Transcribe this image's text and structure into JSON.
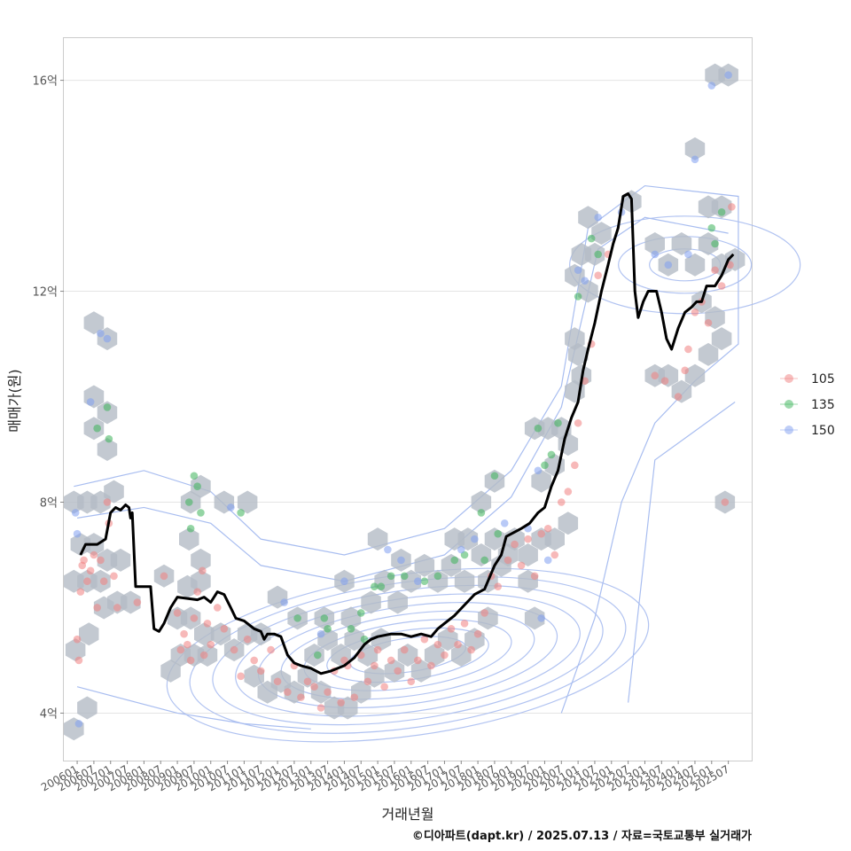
{
  "chart_data": {
    "type": "scatter",
    "xlabel": "거래년월",
    "ylabel": "매매가(원)",
    "caption": "©디아파트(dapt.kr) / 2025.07.13 / 자료=국토교통부 실거래가",
    "x_range": [
      2005.6,
      2026.2
    ],
    "y_range": [
      3.1,
      16.8
    ],
    "y_ticks": [
      {
        "value": 4,
        "label": "4억"
      },
      {
        "value": 8,
        "label": "8억"
      },
      {
        "value": 12,
        "label": "12억"
      },
      {
        "value": 16,
        "label": "16억"
      }
    ],
    "x_tick_labels": [
      "200601",
      "200607",
      "200701",
      "200707",
      "200801",
      "200807",
      "200901",
      "200907",
      "201001",
      "201007",
      "201101",
      "201107",
      "201201",
      "201207",
      "201301",
      "201307",
      "201401",
      "201407",
      "201501",
      "201507",
      "201601",
      "201607",
      "201701",
      "201707",
      "201801",
      "201807",
      "201901",
      "201907",
      "202001",
      "202007",
      "202101",
      "202107",
      "202201",
      "202207",
      "202301",
      "202307",
      "202401",
      "202407",
      "202501",
      "202507"
    ],
    "legend": {
      "position": "right",
      "entries": [
        {
          "label": "105",
          "color": "#f08080"
        },
        {
          "label": "135",
          "color": "#3cb35a"
        },
        {
          "label": "150",
          "color": "#7f9ef0"
        }
      ]
    },
    "trend_line": [
      [
        2006.1,
        7.0
      ],
      [
        2006.25,
        7.2
      ],
      [
        2006.6,
        7.2
      ],
      [
        2006.85,
        7.3
      ],
      [
        2007.0,
        7.8
      ],
      [
        2007.15,
        7.9
      ],
      [
        2007.3,
        7.85
      ],
      [
        2007.45,
        7.95
      ],
      [
        2007.55,
        7.9
      ],
      [
        2007.6,
        7.7
      ],
      [
        2007.65,
        7.8
      ],
      [
        2007.75,
        6.4
      ],
      [
        2007.9,
        6.4
      ],
      [
        2008.2,
        6.4
      ],
      [
        2008.3,
        5.6
      ],
      [
        2008.45,
        5.55
      ],
      [
        2008.6,
        5.7
      ],
      [
        2008.8,
        6.0
      ],
      [
        2009.0,
        6.2
      ],
      [
        2009.6,
        6.15
      ],
      [
        2009.8,
        6.2
      ],
      [
        2010.0,
        6.1
      ],
      [
        2010.2,
        6.3
      ],
      [
        2010.4,
        6.25
      ],
      [
        2010.6,
        6.0
      ],
      [
        2010.75,
        5.8
      ],
      [
        2011.0,
        5.75
      ],
      [
        2011.3,
        5.6
      ],
      [
        2011.5,
        5.55
      ],
      [
        2011.6,
        5.4
      ],
      [
        2011.7,
        5.5
      ],
      [
        2011.9,
        5.5
      ],
      [
        2012.1,
        5.45
      ],
      [
        2012.3,
        5.1
      ],
      [
        2012.5,
        4.95
      ],
      [
        2012.7,
        4.9
      ],
      [
        2013.0,
        4.85
      ],
      [
        2013.3,
        4.75
      ],
      [
        2013.6,
        4.8
      ],
      [
        2013.8,
        4.85
      ],
      [
        2014.0,
        4.9
      ],
      [
        2014.3,
        5.05
      ],
      [
        2014.6,
        5.3
      ],
      [
        2014.8,
        5.4
      ],
      [
        2015.0,
        5.45
      ],
      [
        2015.4,
        5.5
      ],
      [
        2015.7,
        5.5
      ],
      [
        2016.0,
        5.45
      ],
      [
        2016.3,
        5.5
      ],
      [
        2016.6,
        5.45
      ],
      [
        2016.8,
        5.6
      ],
      [
        2017.0,
        5.7
      ],
      [
        2017.3,
        5.85
      ],
      [
        2017.6,
        6.05
      ],
      [
        2017.9,
        6.25
      ],
      [
        2018.2,
        6.35
      ],
      [
        2018.5,
        6.8
      ],
      [
        2018.7,
        7.0
      ],
      [
        2018.85,
        7.35
      ],
      [
        2019.0,
        7.4
      ],
      [
        2019.3,
        7.5
      ],
      [
        2019.55,
        7.6
      ],
      [
        2019.8,
        7.8
      ],
      [
        2020.0,
        7.9
      ],
      [
        2020.2,
        8.3
      ],
      [
        2020.4,
        8.6
      ],
      [
        2020.6,
        9.2
      ],
      [
        2020.8,
        9.6
      ],
      [
        2021.0,
        9.9
      ],
      [
        2021.15,
        10.5
      ],
      [
        2021.3,
        10.9
      ],
      [
        2021.5,
        11.4
      ],
      [
        2021.7,
        12.0
      ],
      [
        2021.9,
        12.5
      ],
      [
        2022.05,
        12.9
      ],
      [
        2022.2,
        13.2
      ],
      [
        2022.35,
        13.8
      ],
      [
        2022.5,
        13.85
      ],
      [
        2022.6,
        13.75
      ],
      [
        2022.7,
        12.0
      ],
      [
        2022.8,
        11.5
      ],
      [
        2022.95,
        11.8
      ],
      [
        2023.1,
        12.0
      ],
      [
        2023.35,
        12.0
      ],
      [
        2023.5,
        11.6
      ],
      [
        2023.65,
        11.1
      ],
      [
        2023.8,
        10.9
      ],
      [
        2024.0,
        11.3
      ],
      [
        2024.2,
        11.6
      ],
      [
        2024.4,
        11.7
      ],
      [
        2024.55,
        11.8
      ],
      [
        2024.7,
        11.8
      ],
      [
        2024.85,
        12.1
      ],
      [
        2025.1,
        12.1
      ],
      [
        2025.3,
        12.3
      ],
      [
        2025.5,
        12.6
      ],
      [
        2025.65,
        12.7
      ]
    ],
    "points_105": [
      [
        2006.0,
        5.4
      ],
      [
        2006.05,
        5.0
      ],
      [
        2006.1,
        6.3
      ],
      [
        2006.15,
        6.8
      ],
      [
        2006.2,
        6.9
      ],
      [
        2006.3,
        6.5
      ],
      [
        2006.4,
        6.7
      ],
      [
        2006.5,
        7.0
      ],
      [
        2006.6,
        6.0
      ],
      [
        2006.7,
        6.9
      ],
      [
        2006.8,
        6.5
      ],
      [
        2006.9,
        8.0
      ],
      [
        2006.95,
        7.6
      ],
      [
        2007.1,
        6.6
      ],
      [
        2007.2,
        6.0
      ],
      [
        2007.8,
        6.1
      ],
      [
        2008.6,
        6.6
      ],
      [
        2009.0,
        5.9
      ],
      [
        2009.1,
        5.2
      ],
      [
        2009.2,
        5.5
      ],
      [
        2009.3,
        5.3
      ],
      [
        2009.4,
        5.0
      ],
      [
        2009.5,
        5.8
      ],
      [
        2009.6,
        6.3
      ],
      [
        2009.75,
        6.7
      ],
      [
        2009.8,
        5.1
      ],
      [
        2009.9,
        5.7
      ],
      [
        2010.0,
        5.3
      ],
      [
        2010.2,
        6.0
      ],
      [
        2010.4,
        5.6
      ],
      [
        2010.7,
        5.2
      ],
      [
        2010.9,
        4.7
      ],
      [
        2011.1,
        5.4
      ],
      [
        2011.3,
        5.0
      ],
      [
        2011.5,
        4.8
      ],
      [
        2011.8,
        5.2
      ],
      [
        2012.0,
        4.6
      ],
      [
        2012.3,
        4.4
      ],
      [
        2012.5,
        4.9
      ],
      [
        2012.7,
        4.3
      ],
      [
        2012.9,
        4.6
      ],
      [
        2013.1,
        4.5
      ],
      [
        2013.3,
        4.1
      ],
      [
        2013.5,
        4.4
      ],
      [
        2013.7,
        4.8
      ],
      [
        2013.9,
        4.2
      ],
      [
        2014.0,
        5.0
      ],
      [
        2014.1,
        4.9
      ],
      [
        2014.3,
        4.3
      ],
      [
        2014.5,
        5.1
      ],
      [
        2014.7,
        4.6
      ],
      [
        2014.9,
        4.9
      ],
      [
        2015.0,
        5.2
      ],
      [
        2015.2,
        4.5
      ],
      [
        2015.4,
        5.0
      ],
      [
        2015.6,
        4.8
      ],
      [
        2015.8,
        5.2
      ],
      [
        2016.0,
        4.6
      ],
      [
        2016.2,
        5.0
      ],
      [
        2016.4,
        5.4
      ],
      [
        2016.6,
        4.9
      ],
      [
        2016.8,
        5.3
      ],
      [
        2017.0,
        5.1
      ],
      [
        2017.2,
        5.6
      ],
      [
        2017.4,
        5.3
      ],
      [
        2017.6,
        5.7
      ],
      [
        2017.8,
        5.2
      ],
      [
        2018.0,
        5.5
      ],
      [
        2018.2,
        5.9
      ],
      [
        2018.4,
        6.6
      ],
      [
        2018.6,
        6.4
      ],
      [
        2018.9,
        6.9
      ],
      [
        2019.1,
        7.2
      ],
      [
        2019.3,
        6.8
      ],
      [
        2019.5,
        7.3
      ],
      [
        2019.7,
        6.6
      ],
      [
        2019.9,
        7.4
      ],
      [
        2020.1,
        7.5
      ],
      [
        2020.3,
        7.0
      ],
      [
        2020.5,
        8.0
      ],
      [
        2020.7,
        8.2
      ],
      [
        2020.9,
        8.7
      ],
      [
        2021.0,
        9.5
      ],
      [
        2021.2,
        10.3
      ],
      [
        2021.4,
        11.0
      ],
      [
        2021.6,
        12.3
      ],
      [
        2021.9,
        12.7
      ],
      [
        2023.3,
        10.4
      ],
      [
        2023.6,
        10.3
      ],
      [
        2024.0,
        10.0
      ],
      [
        2024.2,
        10.5
      ],
      [
        2024.3,
        10.9
      ],
      [
        2024.5,
        11.6
      ],
      [
        2024.7,
        11.8
      ],
      [
        2024.9,
        11.4
      ],
      [
        2025.1,
        12.4
      ],
      [
        2025.3,
        12.1
      ],
      [
        2025.4,
        8.0
      ],
      [
        2025.55,
        12.5
      ],
      [
        2025.6,
        13.6
      ]
    ],
    "points_135": [
      [
        2006.9,
        9.8
      ],
      [
        2006.6,
        9.4
      ],
      [
        2006.95,
        9.2
      ],
      [
        2009.5,
        8.5
      ],
      [
        2009.6,
        8.3
      ],
      [
        2009.7,
        7.8
      ],
      [
        2009.4,
        7.5
      ],
      [
        2009.35,
        8.0
      ],
      [
        2010.9,
        7.8
      ],
      [
        2012.6,
        5.8
      ],
      [
        2013.2,
        5.1
      ],
      [
        2013.4,
        5.8
      ],
      [
        2013.5,
        5.6
      ],
      [
        2014.2,
        5.6
      ],
      [
        2014.5,
        5.9
      ],
      [
        2014.6,
        5.4
      ],
      [
        2014.9,
        6.4
      ],
      [
        2015.1,
        6.4
      ],
      [
        2015.4,
        6.6
      ],
      [
        2015.8,
        6.6
      ],
      [
        2016.4,
        6.5
      ],
      [
        2016.8,
        6.6
      ],
      [
        2017.3,
        6.9
      ],
      [
        2017.6,
        7.0
      ],
      [
        2018.1,
        7.8
      ],
      [
        2018.2,
        6.9
      ],
      [
        2018.5,
        8.5
      ],
      [
        2018.6,
        7.4
      ],
      [
        2019.8,
        9.4
      ],
      [
        2020.0,
        8.7
      ],
      [
        2020.2,
        8.9
      ],
      [
        2020.4,
        9.5
      ],
      [
        2021.0,
        11.9
      ],
      [
        2021.4,
        13.0
      ],
      [
        2021.6,
        12.7
      ],
      [
        2025.0,
        13.2
      ],
      [
        2025.1,
        12.9
      ],
      [
        2025.3,
        13.5
      ]
    ],
    "points_150": [
      [
        2005.95,
        7.8
      ],
      [
        2006.0,
        7.4
      ],
      [
        2006.05,
        3.8
      ],
      [
        2006.4,
        9.9
      ],
      [
        2006.7,
        11.2
      ],
      [
        2006.9,
        11.1
      ],
      [
        2010.6,
        7.9
      ],
      [
        2012.2,
        6.1
      ],
      [
        2013.3,
        5.5
      ],
      [
        2014.0,
        6.5
      ],
      [
        2015.3,
        7.1
      ],
      [
        2015.7,
        6.9
      ],
      [
        2016.2,
        6.5
      ],
      [
        2017.5,
        7.1
      ],
      [
        2017.9,
        7.3
      ],
      [
        2018.8,
        7.6
      ],
      [
        2019.5,
        7.5
      ],
      [
        2019.8,
        8.6
      ],
      [
        2019.9,
        5.8
      ],
      [
        2020.1,
        6.9
      ],
      [
        2021.0,
        12.4
      ],
      [
        2021.2,
        12.2
      ],
      [
        2021.6,
        13.4
      ],
      [
        2022.3,
        13.5
      ],
      [
        2023.3,
        12.7
      ],
      [
        2023.7,
        12.5
      ],
      [
        2024.3,
        12.7
      ],
      [
        2024.5,
        14.5
      ],
      [
        2025.0,
        15.9
      ],
      [
        2025.5,
        16.1
      ]
    ],
    "hexbins": [
      [
        2005.9,
        3.7
      ],
      [
        2006.3,
        4.1
      ],
      [
        2005.95,
        5.2
      ],
      [
        2006.35,
        5.5
      ],
      [
        2005.9,
        6.5
      ],
      [
        2006.3,
        6.5
      ],
      [
        2006.7,
        6.5
      ],
      [
        2006.1,
        7.2
      ],
      [
        2006.5,
        7.2
      ],
      [
        2005.9,
        8.0
      ],
      [
        2006.3,
        8.0
      ],
      [
        2006.7,
        8.0
      ],
      [
        2007.1,
        8.2
      ],
      [
        2006.5,
        9.4
      ],
      [
        2006.9,
        9.0
      ],
      [
        2006.5,
        10.0
      ],
      [
        2006.9,
        9.7
      ],
      [
        2006.5,
        11.4
      ],
      [
        2006.9,
        11.1
      ],
      [
        2006.9,
        6.9
      ],
      [
        2007.3,
        6.9
      ],
      [
        2006.8,
        6.0
      ],
      [
        2007.2,
        6.1
      ],
      [
        2007.6,
        6.1
      ],
      [
        2008.6,
        6.6
      ],
      [
        2008.8,
        4.8
      ],
      [
        2009.1,
        5.1
      ],
      [
        2009.5,
        5.1
      ],
      [
        2009.9,
        5.1
      ],
      [
        2009.0,
        5.8
      ],
      [
        2009.4,
        5.8
      ],
      [
        2009.8,
        5.5
      ],
      [
        2009.3,
        6.4
      ],
      [
        2009.7,
        6.5
      ],
      [
        2009.35,
        7.3
      ],
      [
        2009.7,
        6.9
      ],
      [
        2009.4,
        8.0
      ],
      [
        2009.7,
        8.3
      ],
      [
        2010.4,
        8.0
      ],
      [
        2011.1,
        8.0
      ],
      [
        2010.3,
        5.5
      ],
      [
        2010.7,
        5.2
      ],
      [
        2011.1,
        5.5
      ],
      [
        2011.5,
        5.5
      ],
      [
        2011.3,
        4.7
      ],
      [
        2011.7,
        4.4
      ],
      [
        2012.1,
        4.6
      ],
      [
        2012.5,
        4.4
      ],
      [
        2012.0,
        6.2
      ],
      [
        2012.9,
        4.7
      ],
      [
        2013.3,
        4.4
      ],
      [
        2013.7,
        4.1
      ],
      [
        2014.1,
        4.1
      ],
      [
        2014.5,
        4.4
      ],
      [
        2014.9,
        4.7
      ],
      [
        2013.1,
        5.1
      ],
      [
        2013.5,
        5.4
      ],
      [
        2013.9,
        5.1
      ],
      [
        2014.3,
        5.4
      ],
      [
        2014.7,
        5.1
      ],
      [
        2015.1,
        5.4
      ],
      [
        2015.5,
        4.8
      ],
      [
        2015.9,
        5.1
      ],
      [
        2016.3,
        4.8
      ],
      [
        2016.7,
        5.1
      ],
      [
        2017.1,
        5.4
      ],
      [
        2017.5,
        5.1
      ],
      [
        2017.9,
        5.4
      ],
      [
        2018.3,
        5.8
      ],
      [
        2012.6,
        5.8
      ],
      [
        2013.4,
        5.8
      ],
      [
        2014.2,
        5.8
      ],
      [
        2014.0,
        6.5
      ],
      [
        2014.8,
        6.1
      ],
      [
        2015.2,
        6.5
      ],
      [
        2015.6,
        6.1
      ],
      [
        2016.0,
        6.5
      ],
      [
        2016.4,
        6.8
      ],
      [
        2016.8,
        6.5
      ],
      [
        2017.2,
        6.8
      ],
      [
        2017.6,
        6.5
      ],
      [
        2017.3,
        7.3
      ],
      [
        2017.7,
        7.3
      ],
      [
        2018.1,
        7.0
      ],
      [
        2018.5,
        7.3
      ],
      [
        2018.9,
        7.0
      ],
      [
        2018.1,
        8.0
      ],
      [
        2018.5,
        8.4
      ],
      [
        2018.3,
        6.5
      ],
      [
        2018.7,
        6.8
      ],
      [
        2015.0,
        7.3
      ],
      [
        2015.7,
        6.9
      ],
      [
        2019.1,
        7.3
      ],
      [
        2019.5,
        7.0
      ],
      [
        2019.9,
        7.3
      ],
      [
        2019.5,
        6.5
      ],
      [
        2019.7,
        5.8
      ],
      [
        2020.3,
        7.3
      ],
      [
        2020.7,
        7.6
      ],
      [
        2019.9,
        8.4
      ],
      [
        2020.3,
        8.7
      ],
      [
        2020.7,
        9.1
      ],
      [
        2019.7,
        9.4
      ],
      [
        2020.1,
        9.4
      ],
      [
        2020.5,
        9.4
      ],
      [
        2020.9,
        10.1
      ],
      [
        2021.1,
        10.4
      ],
      [
        2021.0,
        10.8
      ],
      [
        2020.9,
        11.1
      ],
      [
        2020.9,
        12.3
      ],
      [
        2021.3,
        12.0
      ],
      [
        2021.1,
        12.7
      ],
      [
        2021.5,
        12.7
      ],
      [
        2021.3,
        13.4
      ],
      [
        2021.7,
        13.1
      ],
      [
        2022.6,
        13.7
      ],
      [
        2023.3,
        12.9
      ],
      [
        2023.7,
        12.5
      ],
      [
        2024.1,
        12.9
      ],
      [
        2024.5,
        12.5
      ],
      [
        2024.9,
        12.9
      ],
      [
        2025.3,
        12.5
      ],
      [
        2025.7,
        12.6
      ],
      [
        2024.9,
        13.6
      ],
      [
        2025.3,
        13.6
      ],
      [
        2024.5,
        14.7
      ],
      [
        2025.1,
        16.1
      ],
      [
        2025.5,
        16.1
      ],
      [
        2023.3,
        10.4
      ],
      [
        2023.7,
        10.4
      ],
      [
        2024.1,
        10.1
      ],
      [
        2024.5,
        10.4
      ],
      [
        2024.9,
        10.8
      ],
      [
        2025.1,
        11.5
      ],
      [
        2024.7,
        11.8
      ],
      [
        2025.3,
        11.1
      ],
      [
        2025.4,
        8.0
      ]
    ]
  }
}
